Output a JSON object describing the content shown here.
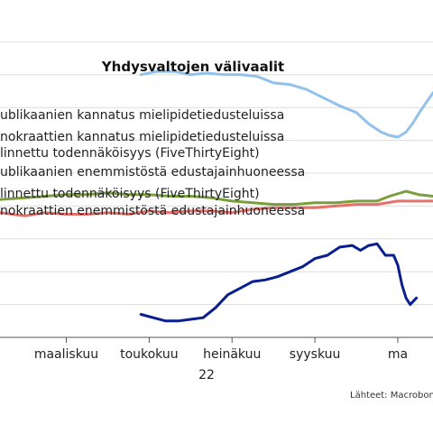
{
  "chart_data": {
    "type": "line",
    "title": "Yhdysvaltojen välivaalit",
    "year_label": "22",
    "source": "Lähteet: Macrobon",
    "legend": [
      "ublikaanien kannatus mielipidetiedusteluissa",
      "nokraattien kannatus mielipidetiedusteluissa",
      "linnettu todennäköisyys (FiveThirtyEight)",
      "ublikaanien enemmistöstä edustajainhuoneessa",
      "linnettu todennäköisyys (FiveThirtyEight)",
      "nokraattien enemmistöstä edustajainhuoneessa"
    ],
    "x_ticks": [
      "maaliskuu",
      "toukokuu",
      "heinäkuu",
      "syyskuu",
      "ma"
    ],
    "x_tick_month_index": [
      0,
      2,
      4,
      6,
      8
    ],
    "xlim": [
      -1.6,
      8.85
    ],
    "ylim": [
      0,
      100
    ],
    "grid": true,
    "gridlines": [
      0,
      10,
      20,
      30,
      40,
      50,
      60,
      70,
      80,
      90
    ],
    "colors": {
      "light_blue": "#92c2ec",
      "red": "#e8706b",
      "green": "#7a9e3c",
      "dark_blue": "#0a1f8f",
      "grid": "#dddddd",
      "axis": "#555555"
    },
    "series": [
      {
        "color": "light_blue",
        "x": [
          1.8,
          2.2,
          2.6,
          3.0,
          3.4,
          3.8,
          4.2,
          4.6,
          5.0,
          5.4,
          5.8,
          6.2,
          6.6,
          7.0,
          7.3,
          7.6,
          7.8,
          8.0,
          8.2,
          8.35,
          8.55,
          8.85
        ],
        "y": [
          80.0,
          81.0,
          81.0,
          80.0,
          80.5,
          80.0,
          80.0,
          79.5,
          77.5,
          77.0,
          75.5,
          73.0,
          70.5,
          68.5,
          65.0,
          62.5,
          61.5,
          61.0,
          62.5,
          65.0,
          69.0,
          74.5
        ]
      },
      {
        "color": "green",
        "x": [
          -1.6,
          -1.0,
          -0.5,
          0.0,
          0.5,
          1.0,
          1.5,
          2.0,
          2.5,
          3.0,
          3.5,
          4.0,
          4.5,
          5.0,
          5.5,
          6.0,
          6.5,
          7.0,
          7.5,
          7.8,
          8.2,
          8.5,
          8.85
        ],
        "y": [
          42.0,
          42.5,
          43.0,
          43.5,
          43.5,
          44.0,
          43.5,
          43.5,
          43.0,
          43.0,
          42.5,
          41.5,
          41.0,
          40.5,
          40.5,
          41.0,
          41.0,
          41.5,
          41.5,
          43.0,
          44.5,
          43.5,
          43.0
        ]
      },
      {
        "color": "red",
        "x": [
          -1.6,
          -1.0,
          -0.5,
          0.0,
          0.5,
          1.0,
          1.5,
          2.0,
          2.5,
          3.0,
          3.5,
          4.0,
          4.5,
          5.0,
          5.5,
          6.0,
          6.5,
          7.0,
          7.5,
          8.0,
          8.4,
          8.85
        ],
        "y": [
          38.0,
          37.0,
          38.0,
          37.5,
          37.5,
          38.0,
          37.5,
          38.5,
          38.0,
          38.5,
          38.5,
          38.0,
          39.0,
          39.5,
          39.5,
          39.5,
          40.0,
          40.5,
          40.5,
          41.5,
          41.5,
          41.5
        ]
      },
      {
        "color": "dark_blue",
        "x": [
          1.8,
          2.1,
          2.4,
          2.7,
          3.0,
          3.3,
          3.6,
          3.9,
          4.2,
          4.5,
          4.8,
          5.1,
          5.4,
          5.7,
          6.0,
          6.3,
          6.6,
          6.9,
          7.1,
          7.3,
          7.5,
          7.7,
          7.9,
          8.0,
          8.1,
          8.2,
          8.3,
          8.45
        ],
        "y": [
          7.0,
          6.0,
          5.0,
          5.0,
          5.5,
          6.0,
          9.0,
          13.0,
          15.0,
          17.0,
          17.5,
          18.5,
          20.0,
          21.5,
          24.0,
          25.0,
          27.5,
          28.0,
          26.5,
          28.0,
          28.5,
          25.0,
          25.0,
          22.0,
          16.0,
          12.0,
          10.0,
          12.0
        ]
      }
    ]
  }
}
